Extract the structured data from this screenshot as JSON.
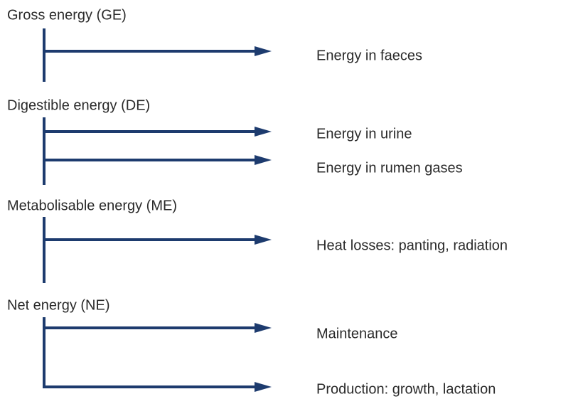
{
  "stages": [
    {
      "label": "Gross energy (GE)",
      "outputs": [
        "Energy in faeces"
      ]
    },
    {
      "label": "Digestible energy (DE)",
      "outputs": [
        "Energy in urine",
        "Energy in rumen gases"
      ]
    },
    {
      "label": "Metabolisable energy (ME)",
      "outputs": [
        "Heat losses: panting, radiation"
      ]
    },
    {
      "label": "Net energy (NE)",
      "outputs": [
        "Maintenance",
        "Production: growth, lactation"
      ]
    }
  ]
}
